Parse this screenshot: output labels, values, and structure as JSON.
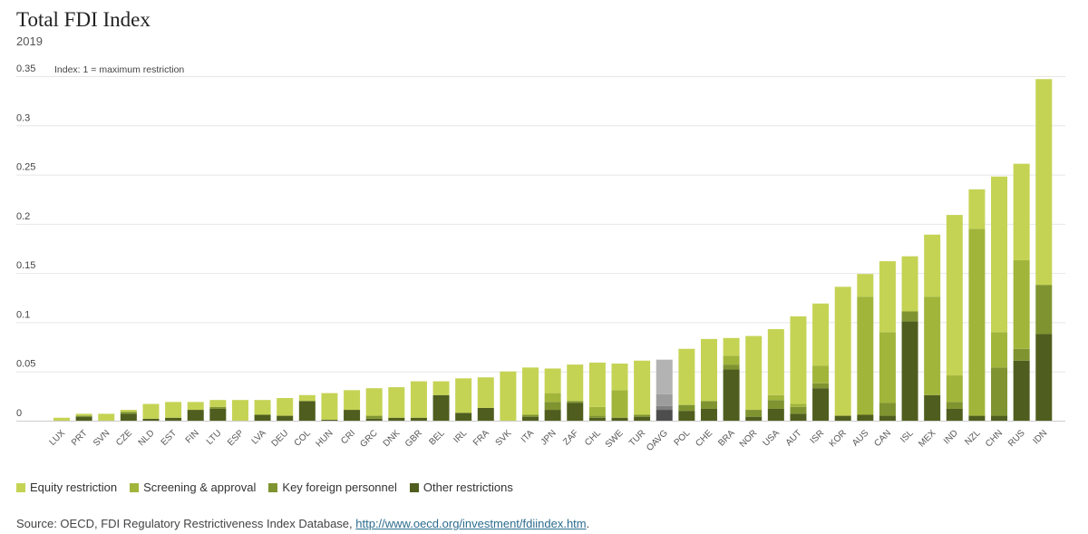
{
  "header": {
    "title": "Total FDI Index",
    "subtitle": "2019"
  },
  "legend": [
    {
      "label": "Equity restriction",
      "color": "#c5d354"
    },
    {
      "label": "Screening & approval",
      "color": "#a2b53b"
    },
    {
      "label": "Key foreign personnel",
      "color": "#7f9430"
    },
    {
      "label": "Other restrictions",
      "color": "#4f5e1e"
    }
  ],
  "source": {
    "prefix": "Source: OECD, FDI Regulatory Restrictiveness Index Database, ",
    "link": "http://www.oecd.org/investment/fdiindex.htm",
    "suffix": "."
  },
  "chart_data": {
    "type": "bar",
    "stacked": true,
    "ylim": [
      0,
      0.35
    ],
    "yticks": [
      0,
      0.05,
      0.1,
      0.15,
      0.2,
      0.25,
      0.3,
      0.35
    ],
    "ytick_labels": [
      "0",
      "0.05",
      "0.1",
      "0.15",
      "0.2",
      "0.25",
      "0.3",
      "0.35"
    ],
    "annotation": "Index: 1 = maximum restriction",
    "grid": true,
    "highlight": {
      "category": "OAVG",
      "colors": [
        "#b3b3b3",
        "#9c9c9c",
        "#808080",
        "#4d4d4d"
      ]
    },
    "categories": [
      "LUX",
      "PRT",
      "SVN",
      "CZE",
      "NLD",
      "EST",
      "FIN",
      "LTU",
      "ESP",
      "LVA",
      "DEU",
      "COL",
      "HUN",
      "CRI",
      "GRC",
      "DNK",
      "GBR",
      "BEL",
      "IRL",
      "FRA",
      "SVK",
      "ITA",
      "JPN",
      "ZAF",
      "CHL",
      "SWE",
      "TUR",
      "OAVG",
      "POL",
      "CHE",
      "BRA",
      "NOR",
      "USA",
      "AUT",
      "ISR",
      "KOR",
      "AUS",
      "CAN",
      "ISL",
      "MEX",
      "IND",
      "NZL",
      "CHN",
      "RUS",
      "IDN"
    ],
    "series": [
      {
        "name": "Other restrictions",
        "values": [
          0,
          0.004,
          0,
          0.007,
          0.002,
          0.003,
          0.011,
          0.012,
          0,
          0.006,
          0.005,
          0.02,
          0.001,
          0.011,
          0.002,
          0.003,
          0.003,
          0.026,
          0.008,
          0.013,
          0,
          0.004,
          0.011,
          0.018,
          0.003,
          0.003,
          0.004,
          0.011,
          0.01,
          0.012,
          0.052,
          0.004,
          0.012,
          0.007,
          0.033,
          0.005,
          0.006,
          0.005,
          0.101,
          0.026,
          0.012,
          0.005,
          0.005,
          0.061,
          0.088
        ]
      },
      {
        "name": "Key foreign personnel",
        "values": [
          0,
          0.001,
          0,
          0.002,
          0,
          0,
          0,
          0.002,
          0,
          0,
          0,
          0,
          0,
          0,
          0.003,
          0,
          0,
          0,
          0,
          0,
          0,
          0.002,
          0.008,
          0.002,
          0.002,
          0,
          0.002,
          0.004,
          0.006,
          0.008,
          0.005,
          0.007,
          0.009,
          0.007,
          0.005,
          0,
          0,
          0.013,
          0.01,
          0,
          0.007,
          0,
          0.049,
          0.012,
          0.05
        ]
      },
      {
        "name": "Screening & approval",
        "values": [
          0,
          0,
          0,
          0,
          0,
          0,
          0,
          0,
          0,
          0,
          0,
          0,
          0,
          0,
          0,
          0,
          0,
          0,
          0,
          0,
          0,
          0,
          0.009,
          0,
          0.009,
          0.028,
          0,
          0.012,
          0,
          0,
          0.009,
          0,
          0.005,
          0.003,
          0.018,
          0,
          0.12,
          0.072,
          0,
          0.1,
          0.027,
          0.19,
          0.036,
          0.09,
          0
        ]
      },
      {
        "name": "Equity restriction",
        "values": [
          0.003,
          0.002,
          0.007,
          0.002,
          0.015,
          0.016,
          0.008,
          0.007,
          0.021,
          0.015,
          0.018,
          0.006,
          0.027,
          0.02,
          0.028,
          0.031,
          0.037,
          0.014,
          0.035,
          0.031,
          0.05,
          0.048,
          0.025,
          0.037,
          0.045,
          0.027,
          0.055,
          0.035,
          0.057,
          0.063,
          0.018,
          0.075,
          0.067,
          0.089,
          0.063,
          0.131,
          0.023,
          0.072,
          0.056,
          0.063,
          0.163,
          0.04,
          0.158,
          0.098,
          0.209
        ]
      }
    ]
  }
}
